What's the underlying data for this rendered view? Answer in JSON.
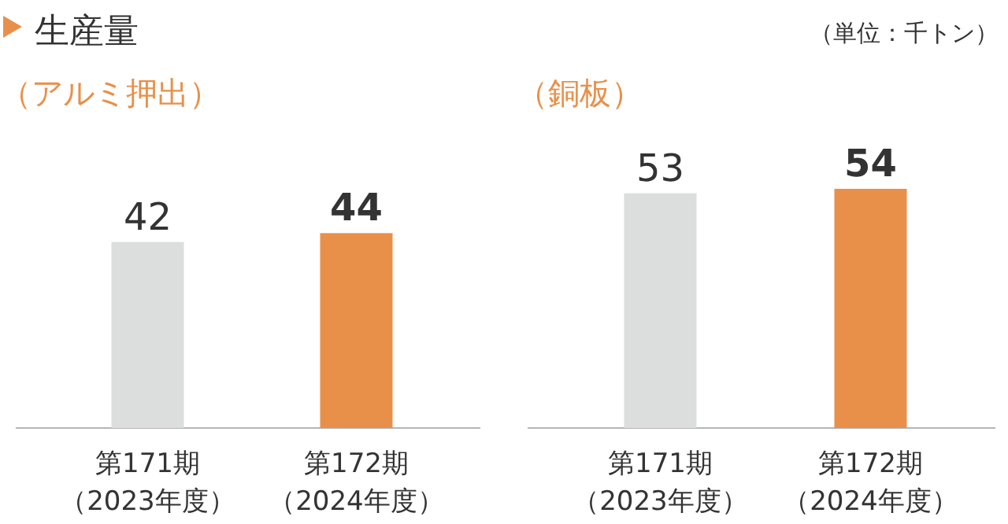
{
  "chart_data": [
    {
      "type": "bar",
      "title": "生産量",
      "subtitle": "（アルミ押出）",
      "annotations": [
        "（単位：千トン）"
      ],
      "categories": [
        "第171期（2023年度）",
        "第172期（2024年度）"
      ],
      "values": [
        42,
        44
      ],
      "colors": [
        "#dcdddd",
        "#e8904a"
      ],
      "data_labels": true
    },
    {
      "type": "bar",
      "subtitle": "（銅板）",
      "categories": [
        "第171期（2023年度）",
        "第172期（2024年度）"
      ],
      "values": [
        53,
        54
      ],
      "colors": [
        "#dcdddd",
        "#e8904a"
      ],
      "data_labels": true
    }
  ]
}
